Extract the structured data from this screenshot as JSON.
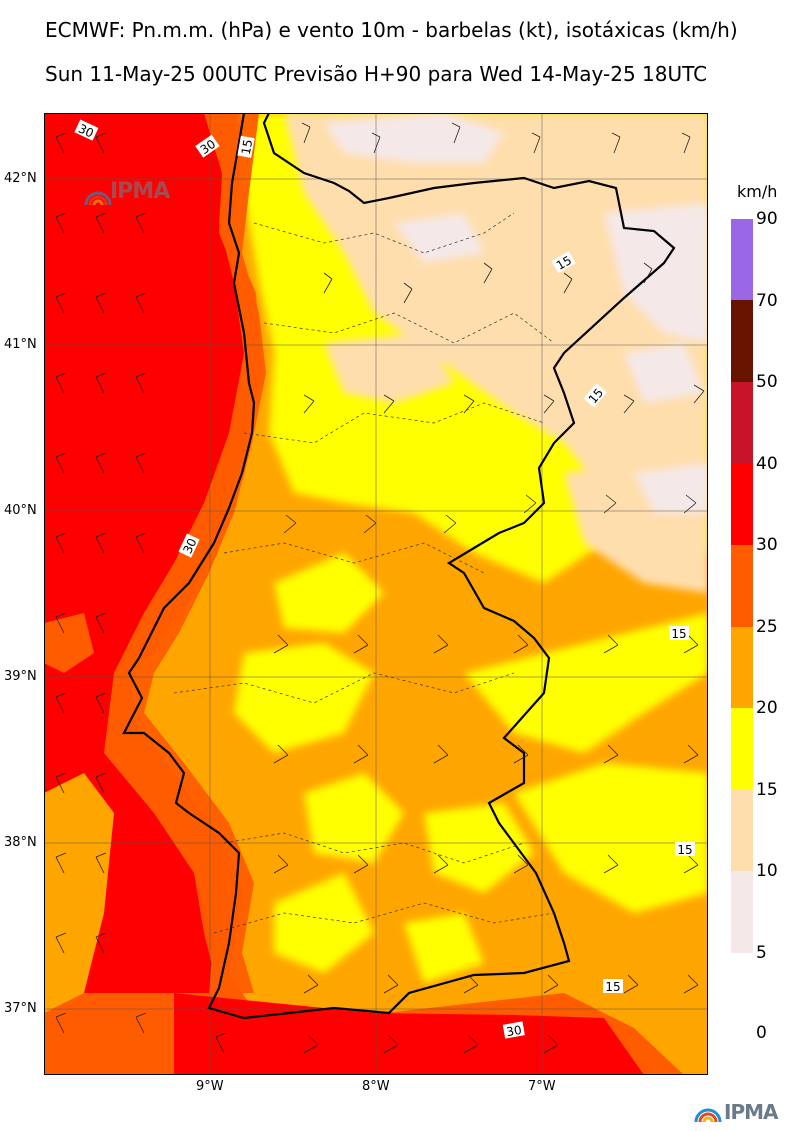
{
  "header": {
    "line1": "ECMWF: Pn.m.m. (hPa) e vento 10m - barbelas (kt), isotáxicas (km/h)",
    "line2": "Sun 11-May-25 00UTC Previsão H+90 para Wed 14-May-25 18UTC"
  },
  "axes": {
    "latitudes": [
      "42°N",
      "41°N",
      "40°N",
      "39°N",
      "38°N",
      "37°N"
    ],
    "longitudes": [
      "9°W",
      "8°W",
      "7°W"
    ]
  },
  "legend": {
    "unit": "km/h",
    "bins": [
      {
        "from": 70,
        "to": 90,
        "color": "#9966e6"
      },
      {
        "from": 50,
        "to": 70,
        "color": "#661400"
      },
      {
        "from": 40,
        "to": 50,
        "color": "#c8142a"
      },
      {
        "from": 30,
        "to": 40,
        "color": "#ff0000"
      },
      {
        "from": 25,
        "to": 30,
        "color": "#ff5c00"
      },
      {
        "from": 20,
        "to": 25,
        "color": "#ffa500"
      },
      {
        "from": 15,
        "to": 20,
        "color": "#ffff00"
      },
      {
        "from": 10,
        "to": 15,
        "color": "#ffdead"
      },
      {
        "from": 5,
        "to": 10,
        "color": "#f5e8e8"
      }
    ],
    "labels": [
      "90",
      "70",
      "50",
      "40",
      "30",
      "25",
      "20",
      "15",
      "10",
      "5",
      "0"
    ]
  },
  "contour_labels": [
    "30",
    "30",
    "15",
    "15",
    "15",
    "30",
    "15",
    "15",
    "15",
    "30"
  ],
  "logo": {
    "text": "IPMA",
    "icon": "ipma-rainbow-icon"
  },
  "colors": {
    "ocean_strong": "#ff0000",
    "ocean_orange": "#ff5c00",
    "land_orange": "#ffa500",
    "land_yellow": "#ffff00",
    "land_tan": "#ffdead",
    "land_pale": "#f5e8e8",
    "border": "#000000"
  }
}
